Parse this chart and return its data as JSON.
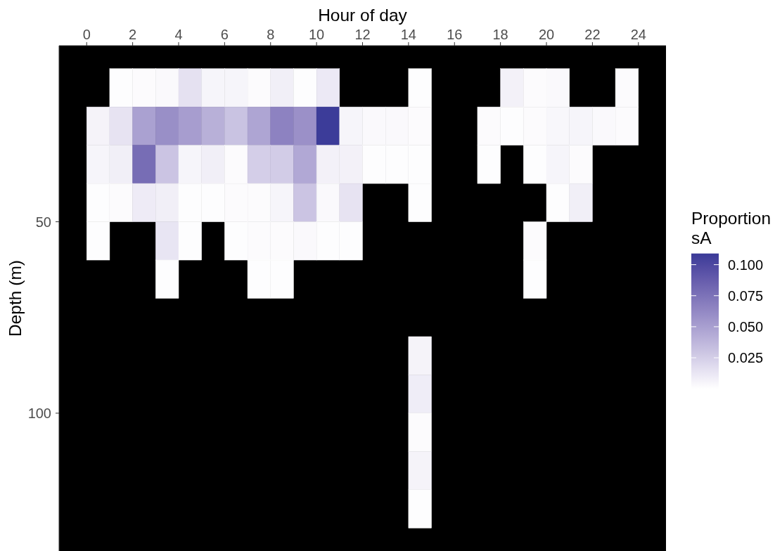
{
  "chart_data": {
    "type": "heatmap",
    "xlabel": "Hour of day",
    "ylabel": "Depth (m)",
    "clabel": "Proportion sA",
    "x": [
      0.5,
      1.5,
      2.5,
      3.5,
      4.5,
      5.5,
      6.5,
      7.5,
      8.5,
      9.5,
      10.5,
      11.5,
      12.5,
      13.5,
      14.5,
      15.5,
      16.5,
      17.5,
      18.5,
      19.5,
      20.5,
      21.5,
      22.5,
      23.5
    ],
    "y": [
      15,
      25,
      35,
      45,
      55,
      65,
      85,
      95,
      105,
      115,
      125
    ],
    "cells": [
      [
        null,
        0.001,
        0.002,
        0.003,
        0.015,
        0.005,
        0.005,
        0.002,
        0.008,
        0.001,
        0.011,
        null,
        null,
        null,
        0.001,
        null,
        null,
        null,
        0.007,
        0.002,
        0.003,
        null,
        null,
        0.002
      ],
      [
        0.006,
        0.014,
        0.049,
        0.059,
        0.051,
        0.041,
        0.031,
        0.047,
        0.066,
        0.058,
        0.108,
        0.005,
        0.003,
        0.003,
        0.002,
        null,
        null,
        0.002,
        0.001,
        0.002,
        0.004,
        0.005,
        0.003,
        0.002
      ],
      [
        0.005,
        0.008,
        0.078,
        0.03,
        0.005,
        0.008,
        0.002,
        0.025,
        0.026,
        0.045,
        0.007,
        0.007,
        0.001,
        0.001,
        0.001,
        null,
        null,
        0.001,
        null,
        0.001,
        0.005,
        0.002,
        null,
        null
      ],
      [
        0.001,
        0.002,
        0.01,
        0.008,
        0.001,
        0.001,
        0.002,
        0.002,
        0.005,
        0.03,
        0.003,
        0.014,
        null,
        null,
        0.001,
        null,
        null,
        null,
        null,
        null,
        0.001,
        0.008,
        null,
        null
      ],
      [
        0.001,
        null,
        null,
        0.013,
        0.001,
        null,
        0.001,
        0.002,
        0.002,
        0.003,
        0.001,
        0.001,
        null,
        null,
        null,
        null,
        null,
        null,
        null,
        0.002,
        null,
        null,
        null,
        null
      ],
      [
        null,
        null,
        null,
        0.001,
        null,
        null,
        null,
        0.001,
        0.001,
        null,
        null,
        null,
        null,
        null,
        null,
        null,
        null,
        null,
        null,
        0.001,
        null,
        null,
        null,
        null
      ],
      [
        null,
        null,
        null,
        null,
        null,
        null,
        null,
        null,
        null,
        null,
        null,
        null,
        null,
        null,
        0.006,
        null,
        null,
        null,
        null,
        null,
        null,
        null,
        null,
        null
      ],
      [
        null,
        null,
        null,
        null,
        null,
        null,
        null,
        null,
        null,
        null,
        null,
        null,
        null,
        null,
        0.009,
        null,
        null,
        null,
        null,
        null,
        null,
        null,
        null,
        null
      ],
      [
        null,
        null,
        null,
        null,
        null,
        null,
        null,
        null,
        null,
        null,
        null,
        null,
        null,
        null,
        0.002,
        null,
        null,
        null,
        null,
        null,
        null,
        null,
        null,
        null
      ],
      [
        null,
        null,
        null,
        null,
        null,
        null,
        null,
        null,
        null,
        null,
        null,
        null,
        null,
        null,
        0.006,
        null,
        null,
        null,
        null,
        null,
        null,
        null,
        null,
        null
      ],
      [
        null,
        null,
        null,
        null,
        null,
        null,
        null,
        null,
        null,
        null,
        null,
        null,
        null,
        null,
        0.001,
        null,
        null,
        null,
        null,
        null,
        null,
        null,
        null,
        null
      ]
    ],
    "colors": [
      "#ffffff",
      "#3a3a98"
    ],
    "clim": [
      0,
      0.109
    ],
    "cticks": [
      {
        "value": 0.025,
        "label": "0.025"
      },
      {
        "value": 0.05,
        "label": "0.050"
      },
      {
        "value": 0.075,
        "label": "0.075"
      },
      {
        "value": 0.1,
        "label": "0.100"
      }
    ],
    "xlim": [
      -1.2,
      25.2
    ],
    "xticks": [
      0,
      2,
      4,
      6,
      8,
      10,
      12,
      14,
      16,
      18,
      20,
      22,
      24
    ],
    "ylim": [
      136,
      4
    ],
    "yticks": [
      50,
      100
    ]
  }
}
